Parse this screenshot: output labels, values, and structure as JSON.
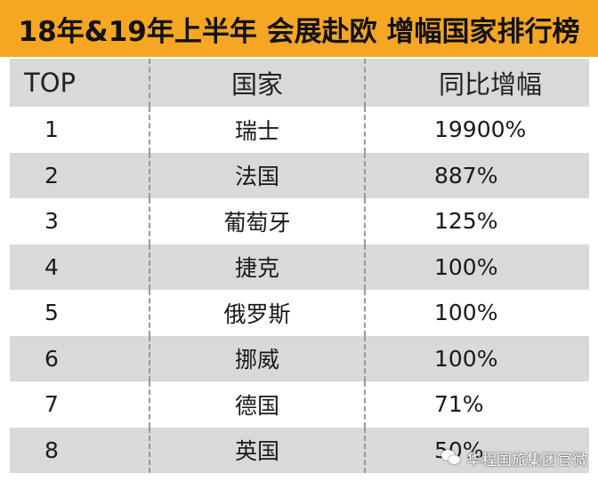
{
  "title": "18年&19年上半年 会展赴欧 增幅国家排行榜",
  "header": {
    "top": "TOP",
    "country": "国家",
    "growth": "同比增幅"
  },
  "rows": [
    {
      "rank": "1",
      "country": "瑞士",
      "growth": "19900%"
    },
    {
      "rank": "2",
      "country": "法国",
      "growth": "887%"
    },
    {
      "rank": "3",
      "country": "葡萄牙",
      "growth": "125%"
    },
    {
      "rank": "4",
      "country": "捷克",
      "growth": "100%"
    },
    {
      "rank": "5",
      "country": "俄罗斯",
      "growth": "100%"
    },
    {
      "rank": "6",
      "country": "挪威",
      "growth": "100%"
    },
    {
      "rank": "7",
      "country": "德国",
      "growth": "71%"
    },
    {
      "rank": "8",
      "country": "英国",
      "growth": "50%"
    }
  ],
  "watermark": "华程国旅集团官微",
  "colors": {
    "title_bar": "#f5a623",
    "stripe": "#d9d9d9",
    "separator": "#9a9a9a"
  }
}
